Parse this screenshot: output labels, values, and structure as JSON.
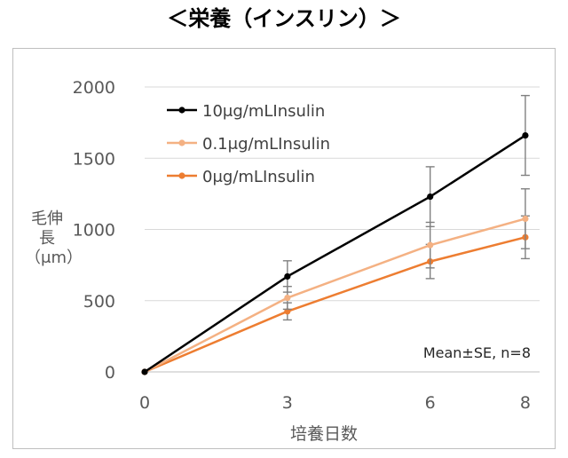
{
  "chart_data": {
    "type": "line",
    "title": "＜栄養（インスリン）＞",
    "xlabel": "培養日数",
    "ylabel": "毛伸長（μm）",
    "x": [
      0,
      3,
      6,
      8
    ],
    "xticks": [
      "0",
      "3",
      "6",
      "8"
    ],
    "ylim": [
      0,
      2000
    ],
    "yticks": [
      "0",
      "500",
      "1000",
      "1500",
      "2000"
    ],
    "grid": true,
    "legend_position": "top-left",
    "annotation": "Mean±SE, n=8",
    "series": [
      {
        "name": "10μg/mLInsulin",
        "color": "#000000",
        "values": [
          0,
          670,
          1230,
          1660
        ],
        "error": [
          0,
          110,
          210,
          280
        ]
      },
      {
        "name": "0.1μg/mLInsulin",
        "color": "#f4b183",
        "values": [
          0,
          520,
          890,
          1075
        ],
        "error": [
          0,
          80,
          160,
          210
        ]
      },
      {
        "name": "0μg/mLInsulin",
        "color": "#ed7d31",
        "values": [
          0,
          425,
          775,
          945
        ],
        "error": [
          0,
          60,
          120,
          150
        ]
      }
    ]
  }
}
